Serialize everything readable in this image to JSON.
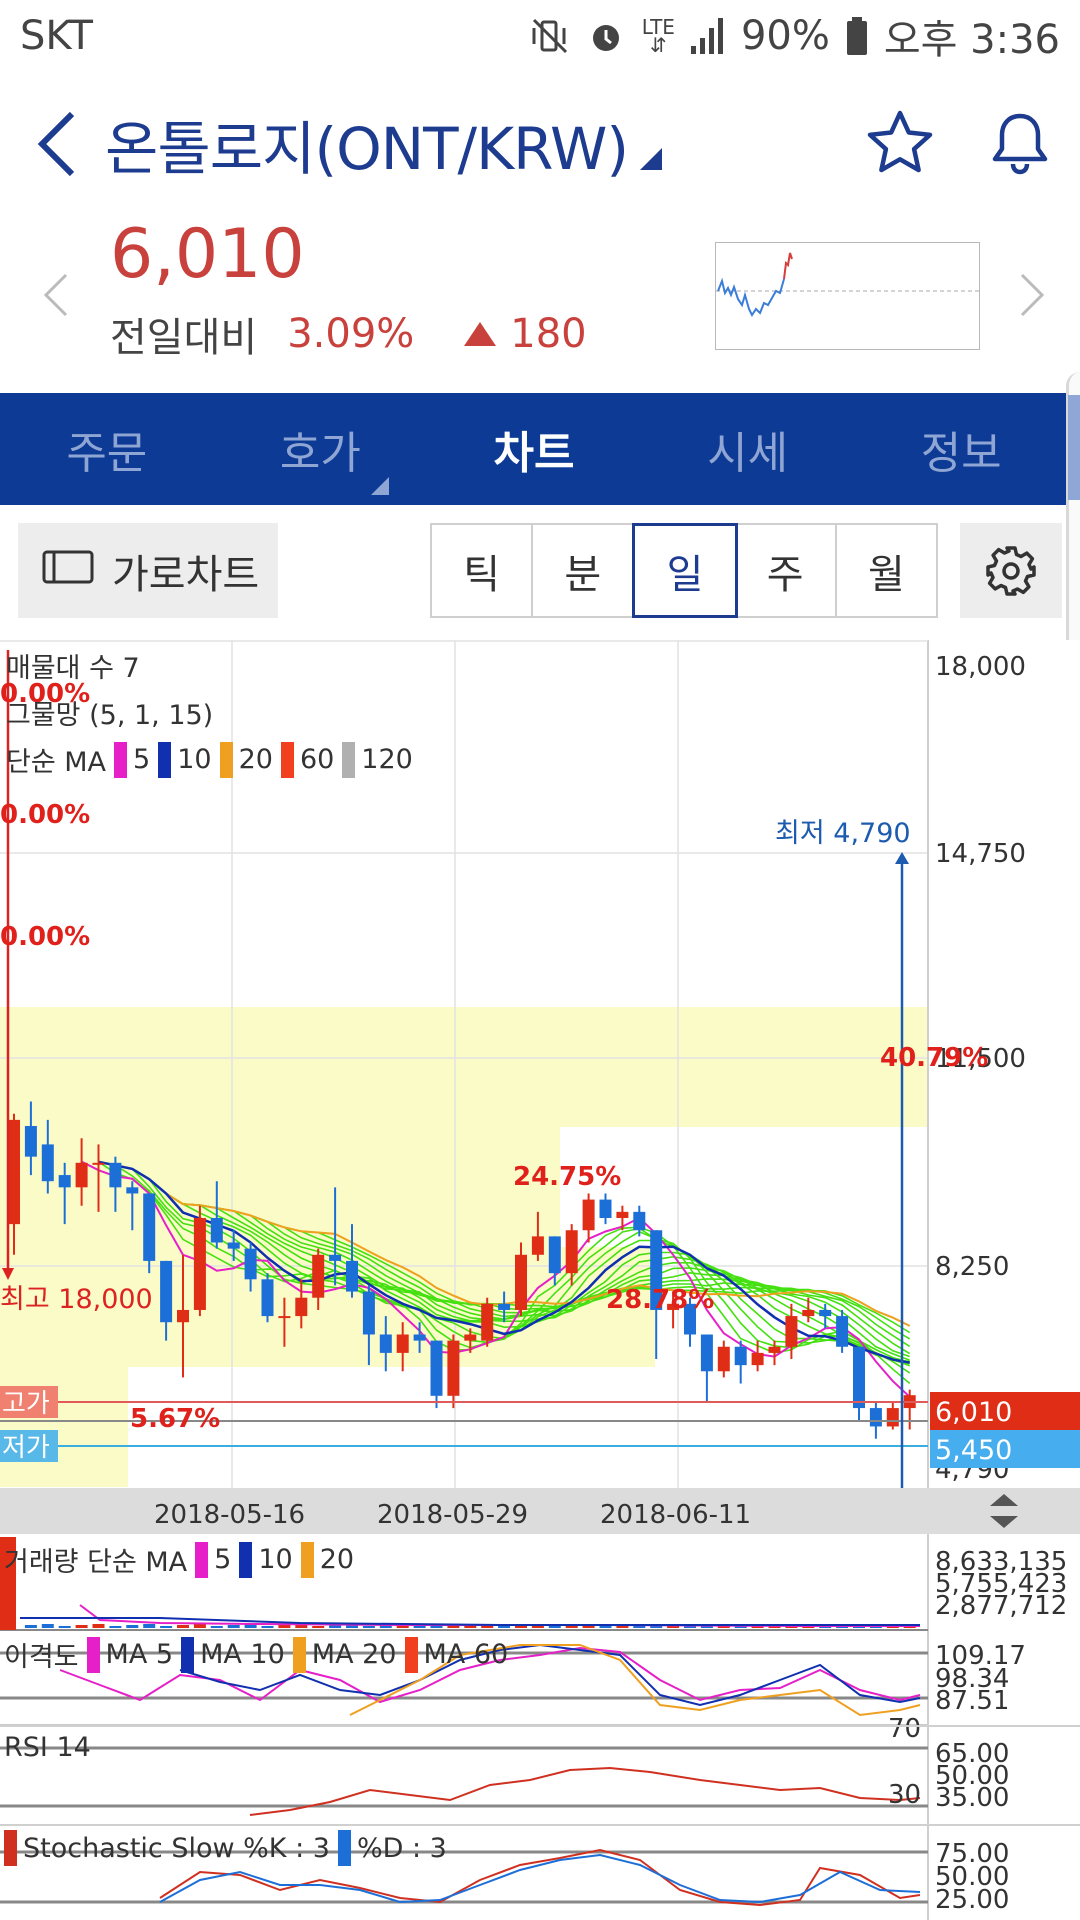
{
  "status_bar": {
    "carrier": "SKT",
    "network": "LTE",
    "battery": "90%",
    "time": "오후 3:36"
  },
  "header": {
    "title": "온톨로지(ONT/KRW)"
  },
  "price": {
    "current": "6,010",
    "change_label": "전일대비",
    "change_percent": "3.09%",
    "change_amount": "180",
    "color_up": "#c8413c"
  },
  "tabs": [
    "주문",
    "호가",
    "차트",
    "시세",
    "정보"
  ],
  "active_tab": 2,
  "toolbar": {
    "landscape_label": "가로차트",
    "periods": [
      "틱",
      "분",
      "일",
      "주",
      "월"
    ],
    "active_period": 2
  },
  "chart": {
    "overlay_labels": {
      "volume_profile": "매물대 수 7",
      "ichimoku": "그물망 (5, 1, 15)",
      "ma_prefix": "단순 MA",
      "ma_periods": [
        "5",
        "10",
        "20",
        "60",
        "120"
      ],
      "ma_colors": [
        "#e620c8",
        "#1030b0",
        "#f0a020",
        "#f04020",
        "#b0b0b0"
      ]
    },
    "annotations": {
      "pct_top_1": "0.00%",
      "pct_top_2": "0.00%",
      "pct_top_3": "0.00%",
      "pct_mid": "40.79%",
      "pct_24": "24.75%",
      "pct_28": "28.78%",
      "pct_low": "5.67%",
      "high_label": "최고 18,000",
      "low_label": "최저 4,790",
      "high_tag": "고가",
      "low_tag": "저가",
      "current_price_tag": "6,010",
      "low_price_tag": "5,450"
    },
    "x_dates": [
      "2018-05-16",
      "2018-05-29",
      "2018-06-11"
    ]
  },
  "volume": {
    "label": "거래량 단순 MA",
    "periods": [
      "5",
      "10",
      "20"
    ],
    "ticks": [
      "8,633,135",
      "5,755,423",
      "2,877,712"
    ]
  },
  "disparity": {
    "label": "이격도",
    "series": [
      "MA 5",
      "MA 10",
      "MA 20",
      "MA 60"
    ],
    "ticks": [
      "109.17",
      "98.34",
      "87.51"
    ],
    "level_label": "70"
  },
  "rsi": {
    "label": "RSI 14",
    "ticks": [
      "65.00",
      "50.00",
      "35.00"
    ],
    "level_label": "30"
  },
  "stochastic": {
    "label": "Stochastic Slow %K : 3",
    "d_label": "%D : 3",
    "ticks": [
      "75.00",
      "50.00",
      "25.00"
    ]
  },
  "chart_data": {
    "type": "candlestick",
    "y_ticks": [
      "18,000",
      "14,750",
      "11,500",
      "8,250",
      "4,790"
    ],
    "ylim": [
      4790,
      18000
    ],
    "x_tick_labels": [
      "2018-05-16",
      "2018-05-29",
      "2018-06-11"
    ],
    "highest": 18000,
    "lowest": 4790,
    "last_close": 6010,
    "low_line": 5450,
    "candles": [
      {
        "o": 8800,
        "c": 10500,
        "h": 10600,
        "l": 8300
      },
      {
        "o": 10400,
        "c": 9900,
        "h": 10800,
        "l": 9600
      },
      {
        "o": 10100,
        "c": 9500,
        "h": 10500,
        "l": 9300
      },
      {
        "o": 9600,
        "c": 9400,
        "h": 9800,
        "l": 8800
      },
      {
        "o": 9400,
        "c": 9800,
        "h": 10200,
        "l": 9100
      },
      {
        "o": 9800,
        "c": 9800,
        "h": 10100,
        "l": 9000
      },
      {
        "o": 9800,
        "c": 9400,
        "h": 9900,
        "l": 9000
      },
      {
        "o": 9400,
        "c": 9300,
        "h": 9500,
        "l": 8700
      },
      {
        "o": 9300,
        "c": 8200,
        "h": 9300,
        "l": 8000
      },
      {
        "o": 8200,
        "c": 7200,
        "h": 8200,
        "l": 6900
      },
      {
        "o": 7200,
        "c": 7400,
        "h": 8300,
        "l": 6300
      },
      {
        "o": 7400,
        "c": 8900,
        "h": 9100,
        "l": 7300
      },
      {
        "o": 8900,
        "c": 8500,
        "h": 9500,
        "l": 8400
      },
      {
        "o": 8500,
        "c": 8400,
        "h": 8700,
        "l": 8200
      },
      {
        "o": 8400,
        "c": 7900,
        "h": 8500,
        "l": 7700
      },
      {
        "o": 7900,
        "c": 7300,
        "h": 8000,
        "l": 7200
      },
      {
        "o": 7300,
        "c": 7300,
        "h": 7600,
        "l": 6800
      },
      {
        "o": 7300,
        "c": 7600,
        "h": 7900,
        "l": 7100
      },
      {
        "o": 7600,
        "c": 8300,
        "h": 8400,
        "l": 7400
      },
      {
        "o": 8300,
        "c": 8200,
        "h": 9400,
        "l": 7800
      },
      {
        "o": 8200,
        "c": 7700,
        "h": 8800,
        "l": 7600
      },
      {
        "o": 7700,
        "c": 7000,
        "h": 7800,
        "l": 6500
      },
      {
        "o": 7000,
        "c": 6700,
        "h": 7300,
        "l": 6400
      },
      {
        "o": 6700,
        "c": 7000,
        "h": 7200,
        "l": 6400
      },
      {
        "o": 7000,
        "c": 6900,
        "h": 7200,
        "l": 6700
      },
      {
        "o": 6900,
        "c": 6000,
        "h": 6900,
        "l": 5800
      },
      {
        "o": 6000,
        "c": 6900,
        "h": 7000,
        "l": 5800
      },
      {
        "o": 6900,
        "c": 7000,
        "h": 7100,
        "l": 6700
      },
      {
        "o": 6900,
        "c": 7500,
        "h": 7600,
        "l": 6800
      },
      {
        "o": 7500,
        "c": 7400,
        "h": 7700,
        "l": 7200
      },
      {
        "o": 7400,
        "c": 8300,
        "h": 8500,
        "l": 7300
      },
      {
        "o": 8300,
        "c": 8600,
        "h": 9000,
        "l": 8200
      },
      {
        "o": 8600,
        "c": 8000,
        "h": 8600,
        "l": 7800
      },
      {
        "o": 8000,
        "c": 8700,
        "h": 8800,
        "l": 7800
      },
      {
        "o": 8700,
        "c": 9200,
        "h": 9300,
        "l": 8500
      },
      {
        "o": 9200,
        "c": 8900,
        "h": 9300,
        "l": 8800
      },
      {
        "o": 8900,
        "c": 9000,
        "h": 9100,
        "l": 8700
      },
      {
        "o": 9000,
        "c": 8700,
        "h": 9100,
        "l": 8600
      },
      {
        "o": 8700,
        "c": 7400,
        "h": 8700,
        "l": 6600
      },
      {
        "o": 7400,
        "c": 7500,
        "h": 7700,
        "l": 7100
      },
      {
        "o": 7500,
        "c": 7000,
        "h": 7600,
        "l": 6800
      },
      {
        "o": 7000,
        "c": 6400,
        "h": 7000,
        "l": 5900
      },
      {
        "o": 6400,
        "c": 6800,
        "h": 6900,
        "l": 6300
      },
      {
        "o": 6800,
        "c": 6500,
        "h": 6900,
        "l": 6200
      },
      {
        "o": 6500,
        "c": 6700,
        "h": 6900,
        "l": 6400
      },
      {
        "o": 6700,
        "c": 6800,
        "h": 6900,
        "l": 6500
      },
      {
        "o": 6800,
        "c": 7300,
        "h": 7500,
        "l": 6600
      },
      {
        "o": 7300,
        "c": 7400,
        "h": 7600,
        "l": 7200
      },
      {
        "o": 7400,
        "c": 7300,
        "h": 7500,
        "l": 7100
      },
      {
        "o": 7300,
        "c": 6800,
        "h": 7400,
        "l": 6700
      },
      {
        "o": 6800,
        "c": 5800,
        "h": 6800,
        "l": 5600
      },
      {
        "o": 5800,
        "c": 5500,
        "h": 5900,
        "l": 5300
      },
      {
        "o": 5500,
        "c": 5800,
        "h": 5900,
        "l": 5450
      },
      {
        "o": 5800,
        "c": 6010,
        "h": 6100,
        "l": 5450
      }
    ]
  }
}
